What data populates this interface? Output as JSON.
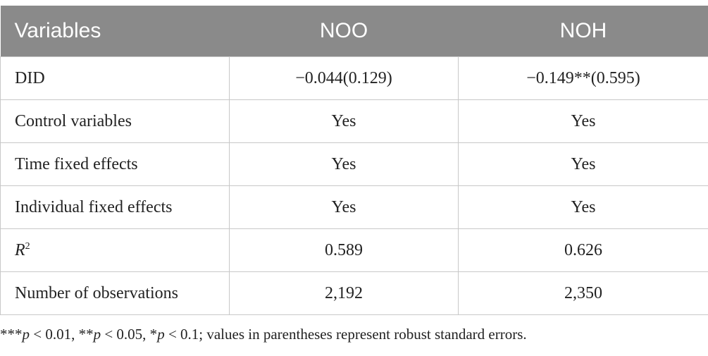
{
  "table": {
    "header": [
      "Variables",
      "NOO",
      "NOH"
    ],
    "rows": [
      [
        "DID",
        "−0.044(0.129)",
        "−0.149**(0.595)"
      ],
      [
        "Control variables",
        "Yes",
        "Yes"
      ],
      [
        "Time fixed effects",
        "Yes",
        "Yes"
      ],
      [
        "Individual fixed effects",
        "Yes",
        "Yes"
      ],
      [
        {
          "base": "R",
          "sup": "2"
        },
        "0.589",
        "0.626"
      ],
      [
        "Number of observations",
        "2,192",
        "2,350"
      ]
    ]
  },
  "footnote": [
    "***",
    "p",
    " < 0.01, **",
    "p",
    " < 0.05, *",
    "p",
    " < 0.1; values in parentheses represent robust standard errors."
  ]
}
